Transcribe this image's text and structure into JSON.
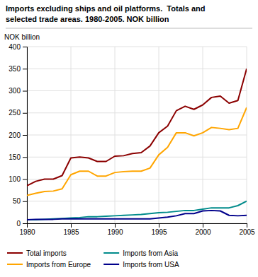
{
  "chart_data": {
    "type": "line",
    "title": "Imports excluding ships and oil platforms.  Totals and",
    "subtitle": "selected trade areas. 1980-2005. NOK billion",
    "ylabel": "NOK billion",
    "x": [
      1980,
      1981,
      1982,
      1983,
      1984,
      1985,
      1986,
      1987,
      1988,
      1989,
      1990,
      1991,
      1992,
      1993,
      1994,
      1995,
      1996,
      1997,
      1998,
      1999,
      2000,
      2001,
      2002,
      2003,
      2004,
      2005
    ],
    "series": [
      {
        "name": "Total imports",
        "color": "#8B0000",
        "values": [
          85,
          95,
          100,
          100,
          108,
          148,
          150,
          148,
          140,
          140,
          152,
          153,
          158,
          160,
          175,
          205,
          220,
          255,
          265,
          258,
          268,
          285,
          288,
          272,
          278,
          350
        ]
      },
      {
        "name": "Imports from Europe",
        "color": "#FFA500",
        "values": [
          63,
          68,
          72,
          73,
          78,
          110,
          118,
          118,
          107,
          107,
          115,
          117,
          118,
          118,
          125,
          155,
          172,
          205,
          205,
          198,
          205,
          217,
          215,
          212,
          215,
          262
        ]
      },
      {
        "name": "Imports from Asia",
        "color": "#008B8B",
        "values": [
          8,
          8,
          9,
          10,
          11,
          12,
          13,
          15,
          15,
          16,
          17,
          18,
          19,
          20,
          22,
          24,
          25,
          27,
          29,
          29,
          32,
          35,
          35,
          35,
          40,
          50
        ]
      },
      {
        "name": "Imports from USA",
        "color": "#00008B",
        "values": [
          8,
          9,
          9,
          9,
          10,
          10,
          10,
          10,
          10,
          10,
          10,
          10,
          10,
          10,
          10,
          12,
          14,
          17,
          22,
          22,
          28,
          29,
          28,
          18,
          17,
          18
        ]
      }
    ],
    "xlim": [
      1980,
      2005
    ],
    "xticks": [
      1980,
      1985,
      1990,
      1995,
      2000,
      2005
    ],
    "ylim": [
      0,
      400
    ],
    "yticks": [
      0,
      50,
      100,
      150,
      200,
      250,
      300,
      350,
      400
    ],
    "grid": true,
    "legend": "bottom"
  }
}
